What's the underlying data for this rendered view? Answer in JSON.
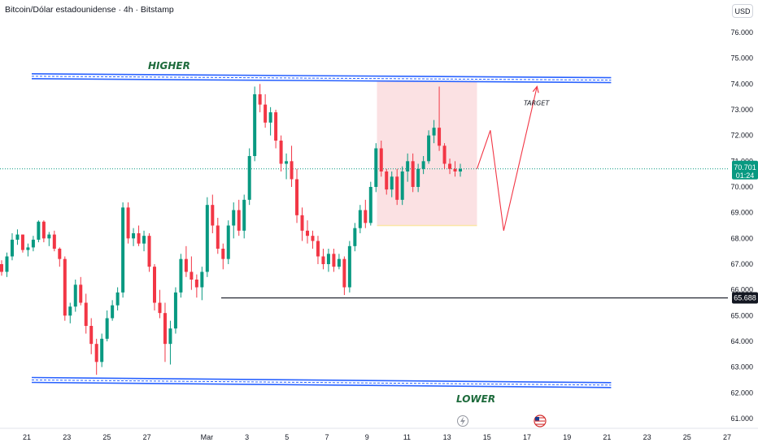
{
  "header": {
    "symbol_title": "Bitcoin/Dólar estadounidense · 4h · Bitstamp",
    "currency_button": "USD"
  },
  "colors": {
    "up": "#089981",
    "down": "#f23645",
    "channel": "#2962ff",
    "zone": "#f9d7da",
    "last_price_bg": "#089981",
    "level_bg": "#131722",
    "projection": "#f23645"
  },
  "icons": {
    "event_1": "lightning-icon",
    "event_2": "us-flag-icon"
  },
  "chart_data": {
    "type": "candlestick",
    "symbol": "Bitcoin/Dólar estadounidense",
    "interval": "4h",
    "exchange": "Bitstamp",
    "y_axis": {
      "range": [
        60700,
        77000
      ],
      "ticks": [
        "76.000",
        "75.000",
        "74.000",
        "73.000",
        "72.000",
        "71.000",
        "70.000",
        "69.000",
        "68.000",
        "67.000",
        "66.000",
        "65.000",
        "64.000",
        "63.000",
        "62.000",
        "61.000"
      ],
      "tick_values": [
        76000,
        75000,
        74000,
        73000,
        72000,
        71000,
        70000,
        69000,
        68000,
        67000,
        66000,
        65000,
        64000,
        63000,
        62000,
        61000
      ]
    },
    "x_axis": {
      "ticks": [
        "21",
        "23",
        "25",
        "27",
        "Mar",
        "3",
        "5",
        "7",
        "9",
        "11",
        "13",
        "15",
        "17",
        "19",
        "21",
        "23",
        "25",
        "27"
      ],
      "tick_dates": [
        "2024-02-21",
        "2024-02-23",
        "2024-02-25",
        "2024-02-27",
        "2024-03-01",
        "2024-03-03",
        "2024-03-05",
        "2024-03-07",
        "2024-03-09",
        "2024-03-11",
        "2024-03-13",
        "2024-03-15",
        "2024-03-17",
        "2024-03-19",
        "2024-03-21",
        "2024-03-23",
        "2024-03-25",
        "2024-03-27"
      ]
    },
    "last_price": {
      "value": 70701,
      "label": "70.701",
      "countdown": "01:24"
    },
    "key_level": {
      "value": 65688,
      "label": "65.688"
    },
    "upper_channel": {
      "label": "HIGHER",
      "from": {
        "date": "2024-02-21",
        "value": 74300
      },
      "to": {
        "date": "2024-03-21",
        "value": 74150
      }
    },
    "lower_channel": {
      "label": "LOWER",
      "from": {
        "date": "2024-02-21",
        "value": 62500
      },
      "to": {
        "date": "2024-03-21",
        "value": 62300
      }
    },
    "target_label": "TARGET",
    "zone": {
      "from_date": "2024-03-09T12:00",
      "to_date": "2024-03-14T12:00",
      "top": 74100,
      "bottom": 68500
    },
    "projection": [
      {
        "date": "2024-03-14T12:00",
        "value": 70700
      },
      {
        "date": "2024-03-15T04:00",
        "value": 72200
      },
      {
        "date": "2024-03-15T20:00",
        "value": 68300
      },
      {
        "date": "2024-03-17T12:00",
        "value": 73900
      }
    ],
    "candles": [
      [
        67000,
        67150,
        66550,
        66700
      ],
      [
        66700,
        67450,
        66500,
        67300
      ],
      [
        67300,
        68200,
        67150,
        67950
      ],
      [
        67950,
        68350,
        67750,
        68150
      ],
      [
        68150,
        68150,
        67450,
        67550
      ],
      [
        67550,
        67800,
        67300,
        67650
      ],
      [
        67650,
        68100,
        67500,
        67950
      ],
      [
        67950,
        68700,
        67850,
        68650
      ],
      [
        68650,
        68700,
        67850,
        68000
      ],
      [
        68000,
        68250,
        67700,
        68150
      ],
      [
        68150,
        68300,
        67500,
        67600
      ],
      [
        67600,
        67650,
        66900,
        67200
      ],
      [
        67200,
        67300,
        64800,
        65000
      ],
      [
        65000,
        65500,
        64700,
        65350
      ],
      [
        65350,
        66400,
        65150,
        66200
      ],
      [
        66200,
        66500,
        65400,
        65500
      ],
      [
        65500,
        65850,
        64300,
        64600
      ],
      [
        64600,
        64900,
        63500,
        63900
      ],
      [
        63900,
        64100,
        62700,
        63200
      ],
      [
        63200,
        64300,
        63000,
        64100
      ],
      [
        64100,
        65200,
        64000,
        64900
      ],
      [
        64900,
        65600,
        64800,
        65400
      ],
      [
        65400,
        66100,
        65200,
        65900
      ],
      [
        65900,
        69400,
        65700,
        69200
      ],
      [
        69200,
        69400,
        67800,
        68000
      ],
      [
        68000,
        68400,
        67700,
        68200
      ],
      [
        68200,
        68500,
        67700,
        67800
      ],
      [
        67800,
        68300,
        67500,
        68100
      ],
      [
        68100,
        68200,
        66700,
        66900
      ],
      [
        66900,
        67000,
        65200,
        65500
      ],
      [
        65500,
        66000,
        64900,
        65100
      ],
      [
        65100,
        65500,
        63200,
        63900
      ],
      [
        63900,
        64800,
        63100,
        64500
      ],
      [
        64500,
        66100,
        64300,
        65900
      ],
      [
        65900,
        67400,
        65700,
        67200
      ],
      [
        67200,
        67700,
        66500,
        66700
      ],
      [
        66700,
        67300,
        66000,
        66400
      ],
      [
        66400,
        66600,
        65700,
        66100
      ],
      [
        66100,
        66900,
        65600,
        66700
      ],
      [
        66700,
        69600,
        66500,
        69300
      ],
      [
        69300,
        69700,
        68200,
        68500
      ],
      [
        68500,
        68800,
        67400,
        67600
      ],
      [
        67600,
        67800,
        66800,
        67200
      ],
      [
        67200,
        68700,
        67000,
        68500
      ],
      [
        68500,
        69400,
        68000,
        69100
      ],
      [
        69100,
        69500,
        68100,
        68300
      ],
      [
        68300,
        69700,
        68000,
        69500
      ],
      [
        69500,
        71500,
        69300,
        71200
      ],
      [
        71200,
        73900,
        71000,
        73600
      ],
      [
        73600,
        74000,
        72900,
        73200
      ],
      [
        73200,
        73600,
        72300,
        72500
      ],
      [
        72500,
        73100,
        72000,
        72900
      ],
      [
        72900,
        73000,
        71500,
        71800
      ],
      [
        71800,
        72000,
        70600,
        70900
      ],
      [
        70900,
        71300,
        70300,
        71000
      ],
      [
        71000,
        71600,
        70000,
        70300
      ],
      [
        70300,
        70700,
        68600,
        68900
      ],
      [
        68900,
        69200,
        67900,
        68300
      ],
      [
        68300,
        68700,
        67800,
        68100
      ],
      [
        68100,
        68300,
        67600,
        67900
      ],
      [
        67900,
        68100,
        67000,
        67300
      ],
      [
        67300,
        67600,
        66800,
        67000
      ],
      [
        67000,
        67600,
        66700,
        67400
      ],
      [
        67400,
        67600,
        66700,
        66900
      ],
      [
        66900,
        67400,
        66800,
        67200
      ],
      [
        67200,
        67300,
        65800,
        66100
      ],
      [
        66100,
        67900,
        65900,
        67700
      ],
      [
        67700,
        68600,
        67500,
        68400
      ],
      [
        68400,
        69300,
        68200,
        69100
      ],
      [
        69100,
        69500,
        68400,
        68600
      ],
      [
        68600,
        70200,
        68500,
        70000
      ],
      [
        70000,
        71700,
        69800,
        71500
      ],
      [
        71500,
        71800,
        70400,
        70600
      ],
      [
        70600,
        70700,
        69700,
        69900
      ],
      [
        69900,
        70600,
        69600,
        70400
      ],
      [
        70400,
        70700,
        69300,
        69500
      ],
      [
        69500,
        70800,
        69300,
        70600
      ],
      [
        70600,
        71300,
        70200,
        71000
      ],
      [
        71000,
        71300,
        69800,
        70000
      ],
      [
        70000,
        70900,
        69800,
        70700
      ],
      [
        70700,
        71200,
        70500,
        71000
      ],
      [
        71000,
        72200,
        70900,
        72000
      ],
      [
        72000,
        72600,
        71700,
        72300
      ],
      [
        72300,
        73900,
        71400,
        71600
      ],
      [
        71600,
        71700,
        70700,
        70900
      ],
      [
        70900,
        71100,
        70500,
        70700
      ],
      [
        70700,
        71000,
        70400,
        70600
      ],
      [
        70600,
        70900,
        70400,
        70701
      ]
    ]
  }
}
